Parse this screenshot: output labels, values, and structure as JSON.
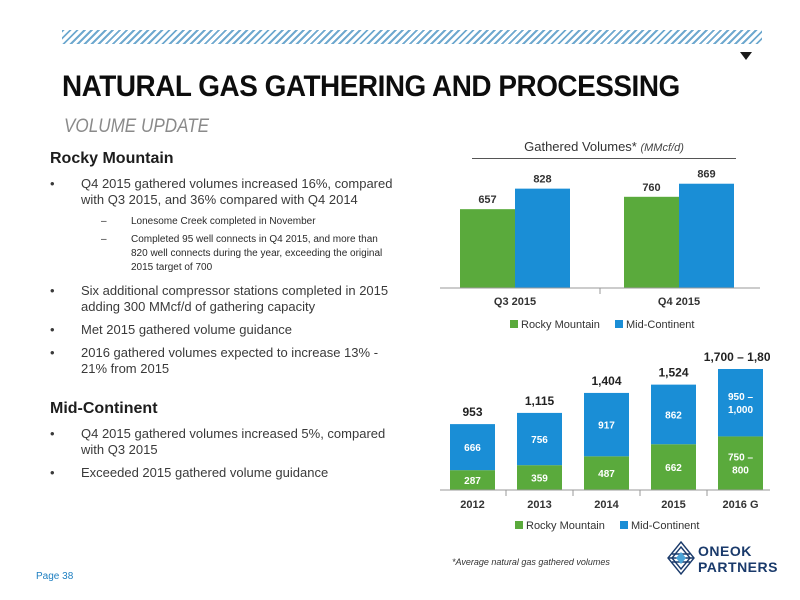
{
  "header": {
    "title": "NATURAL GAS GATHERING AND PROCESSING",
    "subtitle": "VOLUME UPDATE"
  },
  "rocky": {
    "heading": "Rocky Mountain",
    "bullets": [
      "Q4 2015 gathered volumes increased 16%, compared with Q3 2015, and 36% compared with Q4 2014",
      "Six additional compressor stations completed in 2015 adding 300 MMcf/d of gathering capacity",
      "Met 2015 gathered volume guidance",
      "2016 gathered volumes expected to increase 13% - 21% from 2015"
    ],
    "subbullets": [
      "Lonesome Creek completed in November",
      "Completed 95 well connects in Q4 2015, and more than 820 well connects during the year, exceeding the original 2015 target of 700"
    ]
  },
  "mid": {
    "heading": "Mid-Continent",
    "bullets": [
      "Q4 2015 gathered volumes increased 5%, compared with Q3 2015",
      "Exceeded 2015 gathered volume guidance"
    ]
  },
  "bullet_symbol": "•",
  "dash_symbol": "–",
  "chart1": {
    "title": "Gathered Volumes*",
    "unit": "(MMcf/d)"
  },
  "colors": {
    "rocky": "#5aaa3c",
    "mid": "#1a8ed6",
    "accent_stripe": "#6fa9cf",
    "page_number": "#1d7fc1"
  },
  "chart_data": [
    {
      "type": "bar",
      "title": "Gathered Volumes* (MMcf/d)",
      "categories": [
        "Q3 2015",
        "Q4 2015"
      ],
      "series": [
        {
          "name": "Rocky Mountain",
          "values": [
            657,
            760
          ]
        },
        {
          "name": "Mid-Continent",
          "values": [
            828,
            869
          ]
        }
      ],
      "data_labels": [
        [
          "657",
          "760"
        ],
        [
          "828",
          "869"
        ]
      ],
      "ylim": [
        0,
        1000
      ],
      "legend": "bottom",
      "grid": false
    },
    {
      "type": "bar",
      "stacked": true,
      "categories": [
        "2012",
        "2013",
        "2014",
        "2015",
        "2016 G"
      ],
      "series": [
        {
          "name": "Rocky Mountain",
          "values": [
            287,
            359,
            487,
            662,
            775
          ]
        },
        {
          "name": "Mid-Continent",
          "values": [
            666,
            756,
            917,
            862,
            975
          ]
        }
      ],
      "segment_labels": [
        [
          "287",
          "359",
          "487",
          "662",
          "750 – 800"
        ],
        [
          "666",
          "756",
          "917",
          "862",
          "950 – 1,000"
        ]
      ],
      "totals": [
        "953",
        "1,115",
        "1,404",
        "1,524",
        "1,700 – 1,800"
      ],
      "ylim": [
        0,
        1900
      ],
      "legend": "bottom",
      "grid": false
    }
  ],
  "footnote": "*Average natural gas gathered volumes",
  "page": "Page 38",
  "logo": {
    "line1": "ONEOK",
    "line2": "PARTNERS"
  }
}
